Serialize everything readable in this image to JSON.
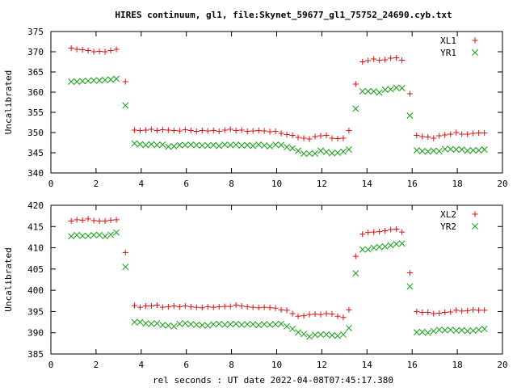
{
  "chart_data": {
    "title": "HIRES continuum, gl1, file:Skynet_59677_gl1_75752_24690.cyb.txt",
    "xlabel": "rel seconds : UT date 2022-04-08T07:45:17.380",
    "panels": [
      {
        "type": "scatter",
        "ylabel": "Uncalibrated",
        "xlim": [
          0,
          20
        ],
        "ylim": [
          340,
          375
        ],
        "xticks": [
          0,
          2,
          4,
          6,
          8,
          10,
          12,
          14,
          16,
          18,
          20
        ],
        "yticks": [
          340,
          345,
          350,
          355,
          360,
          365,
          370,
          375
        ],
        "legend": "top-right",
        "grid": false,
        "series": [
          {
            "name": "XL1",
            "marker": "plus",
            "color": "#e01010",
            "x": [
              0.9,
              1.15,
              1.4,
              1.65,
              1.9,
              2.15,
              2.4,
              2.65,
              2.9,
              3.3,
              3.7,
              3.95,
              4.2,
              4.45,
              4.7,
              4.95,
              5.2,
              5.45,
              5.7,
              5.95,
              6.2,
              6.45,
              6.7,
              6.95,
              7.2,
              7.45,
              7.7,
              7.95,
              8.2,
              8.45,
              8.7,
              8.95,
              9.2,
              9.45,
              9.7,
              9.95,
              10.2,
              10.45,
              10.7,
              10.95,
              11.2,
              11.45,
              11.7,
              11.95,
              12.2,
              12.45,
              12.7,
              12.95,
              13.2,
              13.5,
              13.8,
              14.05,
              14.3,
              14.55,
              14.8,
              15.05,
              15.3,
              15.55,
              15.9,
              16.2,
              16.45,
              16.7,
              16.95,
              17.2,
              17.45,
              17.7,
              17.95,
              18.2,
              18.45,
              18.7,
              18.95,
              19.2
            ],
            "y": [
              370.9,
              370.6,
              370.5,
              370.3,
              370.0,
              370.1,
              370.0,
              370.3,
              370.6,
              362.6,
              350.6,
              350.5,
              350.6,
              350.8,
              350.5,
              350.7,
              350.6,
              350.5,
              350.4,
              350.7,
              350.5,
              350.3,
              350.5,
              350.4,
              350.5,
              350.3,
              350.6,
              350.8,
              350.5,
              350.6,
              350.3,
              350.4,
              350.5,
              350.4,
              350.2,
              350.3,
              349.8,
              349.5,
              349.3,
              348.8,
              348.6,
              348.4,
              349.0,
              349.2,
              349.3,
              348.6,
              348.5,
              348.6,
              350.5,
              362.0,
              367.5,
              367.8,
              368.2,
              367.9,
              368.0,
              368.4,
              368.5,
              367.9,
              359.6,
              349.3,
              349.0,
              348.9,
              348.6,
              349.2,
              349.4,
              349.6,
              350.0,
              349.6,
              349.6,
              349.8,
              349.9,
              349.9
            ]
          },
          {
            "name": "YR1",
            "marker": "cross",
            "color": "#10a010",
            "x": [
              0.9,
              1.15,
              1.4,
              1.65,
              1.9,
              2.15,
              2.4,
              2.65,
              2.9,
              3.3,
              3.7,
              3.95,
              4.2,
              4.45,
              4.7,
              4.95,
              5.2,
              5.45,
              5.7,
              5.95,
              6.2,
              6.45,
              6.7,
              6.95,
              7.2,
              7.45,
              7.7,
              7.95,
              8.2,
              8.45,
              8.7,
              8.95,
              9.2,
              9.45,
              9.7,
              9.95,
              10.2,
              10.45,
              10.7,
              10.95,
              11.2,
              11.45,
              11.7,
              11.95,
              12.2,
              12.45,
              12.7,
              12.95,
              13.2,
              13.5,
              13.8,
              14.05,
              14.3,
              14.55,
              14.8,
              15.05,
              15.3,
              15.55,
              15.9,
              16.2,
              16.45,
              16.7,
              16.95,
              17.2,
              17.45,
              17.7,
              17.95,
              18.2,
              18.45,
              18.7,
              18.95,
              19.2
            ],
            "y": [
              362.6,
              362.6,
              362.7,
              362.8,
              362.9,
              362.9,
              363.0,
              363.1,
              363.3,
              356.7,
              347.3,
              347.1,
              346.9,
              347.1,
              346.9,
              347.0,
              346.5,
              346.6,
              346.9,
              346.9,
              347.0,
              346.9,
              346.8,
              346.8,
              346.9,
              346.7,
              347.0,
              346.9,
              347.0,
              346.8,
              346.9,
              346.7,
              347.0,
              346.8,
              346.6,
              347.0,
              346.9,
              346.4,
              346.1,
              345.5,
              344.8,
              344.8,
              344.8,
              345.5,
              345.2,
              344.9,
              345.0,
              345.3,
              345.8,
              355.9,
              360.2,
              360.2,
              360.2,
              359.9,
              360.6,
              360.7,
              361.1,
              361.0,
              354.2,
              345.6,
              345.4,
              345.3,
              345.5,
              345.4,
              345.9,
              345.9,
              345.8,
              345.8,
              345.5,
              345.6,
              345.6,
              345.8
            ]
          }
        ]
      },
      {
        "type": "scatter",
        "ylabel": "Uncalibrated",
        "xlim": [
          0,
          20
        ],
        "ylim": [
          385,
          420
        ],
        "xticks": [
          0,
          2,
          4,
          6,
          8,
          10,
          12,
          14,
          16,
          18,
          20
        ],
        "yticks": [
          385,
          390,
          395,
          400,
          405,
          410,
          415,
          420
        ],
        "legend": "top-right",
        "grid": false,
        "series": [
          {
            "name": "XL2",
            "marker": "plus",
            "color": "#e01010",
            "x": [
              0.9,
              1.15,
              1.4,
              1.65,
              1.9,
              2.15,
              2.4,
              2.65,
              2.9,
              3.3,
              3.7,
              3.95,
              4.2,
              4.45,
              4.7,
              4.95,
              5.2,
              5.45,
              5.7,
              5.95,
              6.2,
              6.45,
              6.7,
              6.95,
              7.2,
              7.45,
              7.7,
              7.95,
              8.2,
              8.45,
              8.7,
              8.95,
              9.2,
              9.45,
              9.7,
              9.95,
              10.2,
              10.45,
              10.7,
              10.95,
              11.2,
              11.45,
              11.7,
              11.95,
              12.2,
              12.45,
              12.7,
              12.95,
              13.2,
              13.5,
              13.8,
              14.05,
              14.3,
              14.55,
              14.8,
              15.05,
              15.3,
              15.55,
              15.9,
              16.2,
              16.45,
              16.7,
              16.95,
              17.2,
              17.45,
              17.7,
              17.95,
              18.2,
              18.45,
              18.7,
              18.95,
              19.2
            ],
            "y": [
              416.3,
              416.6,
              416.5,
              416.8,
              416.4,
              416.3,
              416.3,
              416.5,
              416.6,
              408.9,
              396.4,
              396.0,
              396.3,
              396.3,
              396.5,
              396.0,
              396.1,
              396.3,
              396.1,
              396.3,
              396.1,
              396.0,
              395.9,
              396.1,
              396.0,
              396.1,
              396.2,
              396.2,
              396.5,
              396.3,
              396.1,
              396.0,
              395.9,
              396.0,
              395.9,
              395.8,
              395.4,
              395.3,
              394.5,
              393.9,
              394.0,
              394.3,
              394.4,
              394.3,
              394.5,
              394.4,
              393.9,
              393.6,
              395.4,
              408.0,
              413.2,
              413.6,
              413.7,
              413.8,
              414.0,
              414.3,
              414.4,
              413.7,
              404.1,
              395.0,
              394.8,
              394.8,
              394.5,
              394.6,
              394.8,
              394.9,
              395.3,
              395.1,
              395.2,
              395.4,
              395.3,
              395.3
            ]
          },
          {
            "name": "YR2",
            "marker": "cross",
            "color": "#10a010",
            "x": [
              0.9,
              1.15,
              1.4,
              1.65,
              1.9,
              2.15,
              2.4,
              2.65,
              2.9,
              3.3,
              3.7,
              3.95,
              4.2,
              4.45,
              4.7,
              4.95,
              5.2,
              5.45,
              5.7,
              5.95,
              6.2,
              6.45,
              6.7,
              6.95,
              7.2,
              7.45,
              7.7,
              7.95,
              8.2,
              8.45,
              8.7,
              8.95,
              9.2,
              9.45,
              9.7,
              9.95,
              10.2,
              10.45,
              10.7,
              10.95,
              11.2,
              11.45,
              11.7,
              11.95,
              12.2,
              12.45,
              12.7,
              12.95,
              13.2,
              13.5,
              13.8,
              14.05,
              14.3,
              14.55,
              14.8,
              15.05,
              15.3,
              15.55,
              15.9,
              16.2,
              16.45,
              16.7,
              16.95,
              17.2,
              17.45,
              17.7,
              17.95,
              18.2,
              18.45,
              18.7,
              18.95,
              19.2
            ],
            "y": [
              412.7,
              413.0,
              412.8,
              412.8,
              413.0,
              413.0,
              412.7,
              413.1,
              413.6,
              405.5,
              392.5,
              392.5,
              392.2,
              392.1,
              392.2,
              391.8,
              391.7,
              391.5,
              392.1,
              392.2,
              392.0,
              391.9,
              391.8,
              391.7,
              392.0,
              392.1,
              391.9,
              392.0,
              392.1,
              391.9,
              392.0,
              392.0,
              391.8,
              392.0,
              391.9,
              392.0,
              392.1,
              391.5,
              390.9,
              390.1,
              389.7,
              389.1,
              389.5,
              389.6,
              389.6,
              389.4,
              389.3,
              389.6,
              391.1,
              404.0,
              409.6,
              409.6,
              410.0,
              410.2,
              410.3,
              410.6,
              410.9,
              411.0,
              400.9,
              390.1,
              390.2,
              390.0,
              390.4,
              390.7,
              390.6,
              390.7,
              390.5,
              390.6,
              390.4,
              390.5,
              390.7,
              390.9
            ]
          }
        ]
      }
    ]
  }
}
